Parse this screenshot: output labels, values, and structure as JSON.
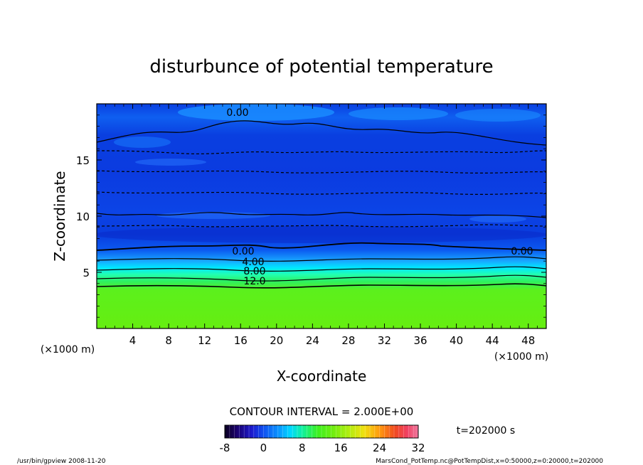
{
  "chart_data": {
    "type": "heatmap",
    "title": "disturbunce of potential temperature",
    "xlabel": "X-coordinate",
    "ylabel": "Z-coordinate",
    "x_unit_left": "(×1000 m)",
    "x_unit_right": "(×1000 m)",
    "xlim": [
      0,
      50
    ],
    "ylim": [
      0,
      20
    ],
    "x_ticks": [
      4,
      8,
      12,
      16,
      20,
      24,
      28,
      32,
      36,
      40,
      44,
      48
    ],
    "y_ticks": [
      5,
      10,
      15
    ],
    "contour_labels": [
      "0.00",
      "0.00",
      "0.00",
      "4.00",
      "8.00",
      "12.0"
    ],
    "contour_interval_text": "CONTOUR INTERVAL = 2.000E+00",
    "time_text": "t=202000 s",
    "colorbar": {
      "min": -8,
      "max": 32,
      "ticks": [
        -8,
        0,
        8,
        16,
        24,
        32
      ]
    },
    "approx_profile": [
      {
        "z": 1.0,
        "value": 14
      },
      {
        "z": 3.0,
        "value": 14
      },
      {
        "z": 4.0,
        "value": 12
      },
      {
        "z": 4.8,
        "value": 8
      },
      {
        "z": 5.8,
        "value": 4
      },
      {
        "z": 7.0,
        "value": 0
      },
      {
        "z": 8.5,
        "value": -4
      },
      {
        "z": 10.0,
        "value": -6
      },
      {
        "z": 12.5,
        "value": -5
      },
      {
        "z": 15.5,
        "value": -4
      },
      {
        "z": 18.0,
        "value": -1
      },
      {
        "z": 19.5,
        "value": 0
      }
    ],
    "colors": {
      "negative": "#0033dd",
      "zero": "#00ccff",
      "positive": "#66ee11"
    }
  },
  "footer": {
    "left": "/usr/bin/gpview   2008-11-20",
    "right": "MarsCond_PotTemp.nc@PotTempDist,x=0:50000,z=0:20000,t=202000"
  }
}
